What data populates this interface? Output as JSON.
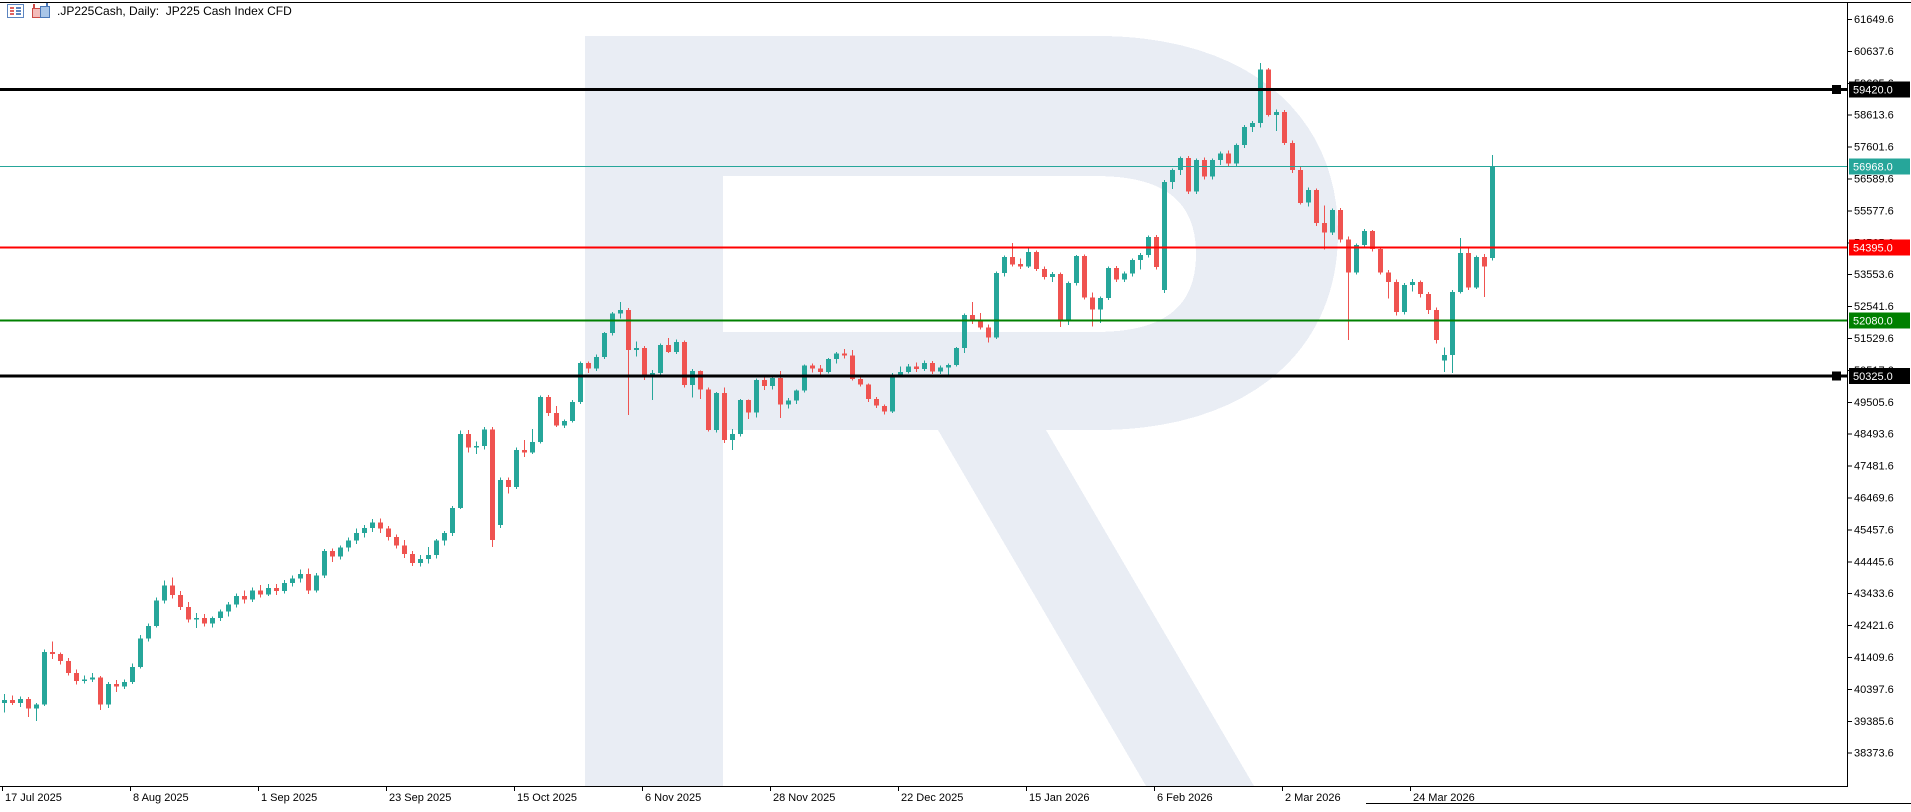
{
  "chart": {
    "title": ".JP225Cash, Daily:  JP225 Cash Index CFD"
  },
  "title_bar": {
    "icons": [
      "indicator-list-icon",
      "chart-symbol-icon"
    ]
  },
  "colors": {
    "bull": "#26a69a",
    "bear": "#ef5350",
    "watermark": "#e9edf4",
    "frame": "#000000",
    "axis_text": "#000000",
    "badge_text": "#ffffff",
    "level_black": "#000000",
    "level_red": "#ff0000",
    "level_green": "#008000",
    "current_price_color": "#26a69a"
  },
  "chart_data": {
    "type": "candlestick",
    "symbol": ".JP225Cash",
    "timeframe": "Daily",
    "description": "JP225 Cash Index CFD",
    "current_price": 56968.0,
    "legend_position": "top-left",
    "grid": false,
    "price_axis_ticks": [
      61649.6,
      60637.6,
      59625.6,
      58613.6,
      57601.6,
      56589.6,
      55577.6,
      54565.6,
      53553.6,
      52541.6,
      51529.6,
      50517.6,
      49505.6,
      48493.6,
      47481.6,
      46469.6,
      45457.6,
      44445.6,
      43433.6,
      42421.6,
      41409.6,
      40397.6,
      39385.6,
      38373.6
    ],
    "time_axis_labels": [
      "17 Jul 2025",
      "8 Aug 2025",
      "1 Sep 2025",
      "23 Sep 2025",
      "15 Oct 2025",
      "6 Nov 2025",
      "28 Nov 2025",
      "22 Dec 2025",
      "15 Jan 2026",
      "6 Feb 2026",
      "2 Mar 2026",
      "24 Mar 2026"
    ],
    "levels": [
      {
        "price": 59420.0,
        "label": "59420.0",
        "color": "#000000",
        "thickness": 3,
        "marker": true
      },
      {
        "price": 56968.0,
        "label": "56968.0",
        "color": "#26a69a",
        "thickness": 1,
        "marker": false
      },
      {
        "price": 54395.0,
        "label": "54395.0",
        "color": "#ff0000",
        "thickness": 2,
        "marker": false
      },
      {
        "price": 52080.0,
        "label": "52080.0",
        "color": "#008000",
        "thickness": 2,
        "marker": false
      },
      {
        "price": 50325.0,
        "label": "50325.0",
        "color": "#000000",
        "thickness": 3,
        "marker": true
      }
    ],
    "candles_ohlc": [
      [
        39950,
        40230,
        39650,
        40050
      ],
      [
        40050,
        40190,
        39890,
        39950
      ],
      [
        39950,
        40160,
        39830,
        40070
      ],
      [
        40070,
        40140,
        39500,
        39780
      ],
      [
        39780,
        39950,
        39380,
        39900
      ],
      [
        39900,
        41650,
        39850,
        41570
      ],
      [
        41570,
        41900,
        41350,
        41500
      ],
      [
        41500,
        41560,
        41180,
        41280
      ],
      [
        41280,
        41380,
        40820,
        40900
      ],
      [
        40900,
        41010,
        40540,
        40650
      ],
      [
        40650,
        40820,
        40570,
        40700
      ],
      [
        40700,
        40900,
        40620,
        40760
      ],
      [
        40760,
        40800,
        39730,
        39900
      ],
      [
        39900,
        40620,
        39790,
        40550
      ],
      [
        40550,
        40680,
        40300,
        40480
      ],
      [
        40480,
        40700,
        40390,
        40610
      ],
      [
        40610,
        41200,
        40560,
        41100
      ],
      [
        41100,
        42100,
        41050,
        42000
      ],
      [
        42000,
        42480,
        41900,
        42400
      ],
      [
        42400,
        43300,
        42350,
        43200
      ],
      [
        43200,
        43830,
        43100,
        43680
      ],
      [
        43680,
        43930,
        43260,
        43380
      ],
      [
        43380,
        43500,
        42900,
        43000
      ],
      [
        43000,
        43150,
        42500,
        42600
      ],
      [
        42600,
        42800,
        42330,
        42650
      ],
      [
        42650,
        42780,
        42380,
        42480
      ],
      [
        42480,
        42700,
        42350,
        42650
      ],
      [
        42650,
        42920,
        42550,
        42850
      ],
      [
        42850,
        43150,
        42700,
        43080
      ],
      [
        43080,
        43420,
        42980,
        43350
      ],
      [
        43350,
        43520,
        43100,
        43230
      ],
      [
        43230,
        43620,
        43150,
        43520
      ],
      [
        43520,
        43700,
        43300,
        43400
      ],
      [
        43400,
        43720,
        43350,
        43600
      ],
      [
        43600,
        43720,
        43380,
        43500
      ],
      [
        43500,
        43850,
        43420,
        43750
      ],
      [
        43750,
        44000,
        43650,
        43900
      ],
      [
        43900,
        44180,
        43780,
        44050
      ],
      [
        44050,
        44210,
        43400,
        43520
      ],
      [
        43520,
        44080,
        43450,
        44000
      ],
      [
        44000,
        44830,
        43920,
        44780
      ],
      [
        44780,
        44850,
        44430,
        44600
      ],
      [
        44600,
        44950,
        44500,
        44880
      ],
      [
        44880,
        45200,
        44760,
        45100
      ],
      [
        45100,
        45480,
        45000,
        45350
      ],
      [
        45350,
        45600,
        45200,
        45500
      ],
      [
        45500,
        45780,
        45380,
        45680
      ],
      [
        45680,
        45800,
        45350,
        45480
      ],
      [
        45480,
        45560,
        45100,
        45220
      ],
      [
        45220,
        45300,
        44850,
        44950
      ],
      [
        44950,
        45120,
        44550,
        44680
      ],
      [
        44680,
        44780,
        44290,
        44390
      ],
      [
        44390,
        44640,
        44280,
        44520
      ],
      [
        44520,
        44900,
        44380,
        44640
      ],
      [
        44640,
        45150,
        44540,
        45100
      ],
      [
        45100,
        45400,
        44950,
        45350
      ],
      [
        45350,
        46200,
        45250,
        46140
      ],
      [
        46140,
        48600,
        46100,
        48480
      ],
      [
        48480,
        48610,
        47900,
        48050
      ],
      [
        48050,
        48250,
        47850,
        48100
      ],
      [
        48100,
        48700,
        48000,
        48620
      ],
      [
        48620,
        48700,
        44900,
        45120
      ],
      [
        45600,
        47100,
        45500,
        47030
      ],
      [
        47030,
        47100,
        46600,
        46800
      ],
      [
        46800,
        48050,
        46740,
        47980
      ],
      [
        47980,
        48300,
        47750,
        47900
      ],
      [
        47900,
        48650,
        47850,
        48230
      ],
      [
        48230,
        49700,
        48180,
        49660
      ],
      [
        49660,
        49720,
        49050,
        49150
      ],
      [
        49150,
        49380,
        48700,
        48760
      ],
      [
        48760,
        48950,
        48680,
        48900
      ],
      [
        48900,
        49560,
        48850,
        49500
      ],
      [
        49500,
        50780,
        49440,
        50730
      ],
      [
        50730,
        50790,
        50420,
        50560
      ],
      [
        50560,
        51000,
        50480,
        50930
      ],
      [
        50930,
        51720,
        50870,
        51690
      ],
      [
        51690,
        52350,
        51600,
        52300
      ],
      [
        52300,
        52670,
        52150,
        52420
      ],
      [
        52420,
        52480,
        49090,
        51150
      ],
      [
        51150,
        51420,
        50950,
        51210
      ],
      [
        51210,
        51280,
        50200,
        50290
      ],
      [
        50290,
        50520,
        49560,
        50420
      ],
      [
        50420,
        51350,
        50350,
        51310
      ],
      [
        51310,
        51530,
        51050,
        51090
      ],
      [
        51090,
        51480,
        51020,
        51400
      ],
      [
        51400,
        51450,
        49960,
        50040
      ],
      [
        50040,
        50540,
        49650,
        50480
      ],
      [
        50480,
        50500,
        49600,
        49900
      ],
      [
        49900,
        49960,
        48560,
        48610
      ],
      [
        48610,
        49820,
        48530,
        49790
      ],
      [
        49790,
        49960,
        48200,
        48290
      ],
      [
        48290,
        48640,
        47970,
        48480
      ],
      [
        48480,
        49600,
        48400,
        49560
      ],
      [
        49560,
        49580,
        48960,
        49170
      ],
      [
        49170,
        50250,
        49000,
        50200
      ],
      [
        50200,
        50320,
        49880,
        50000
      ],
      [
        50000,
        50330,
        49900,
        50260
      ],
      [
        50260,
        50480,
        49000,
        49420
      ],
      [
        49420,
        49620,
        49300,
        49540
      ],
      [
        49540,
        49900,
        49430,
        49860
      ],
      [
        49860,
        50690,
        49800,
        50650
      ],
      [
        50650,
        50720,
        50440,
        50560
      ],
      [
        50560,
        50680,
        50380,
        50450
      ],
      [
        50450,
        50900,
        50400,
        50860
      ],
      [
        50860,
        51080,
        50720,
        51030
      ],
      [
        51030,
        51180,
        50880,
        50980
      ],
      [
        50980,
        51150,
        50180,
        50230
      ],
      [
        50230,
        50280,
        49990,
        50050
      ],
      [
        50050,
        50090,
        49500,
        49590
      ],
      [
        49590,
        49660,
        49310,
        49380
      ],
      [
        49380,
        49420,
        49100,
        49200
      ],
      [
        49200,
        50420,
        49150,
        50360
      ],
      [
        50360,
        50620,
        50300,
        50450
      ],
      [
        50450,
        50700,
        50400,
        50620
      ],
      [
        50620,
        50760,
        50450,
        50540
      ],
      [
        50540,
        50810,
        50480,
        50740
      ],
      [
        50740,
        50800,
        50390,
        50470
      ],
      [
        50470,
        50660,
        50380,
        50600
      ],
      [
        50600,
        50720,
        50280,
        50680
      ],
      [
        50680,
        51250,
        50620,
        51210
      ],
      [
        51210,
        52300,
        51050,
        52260
      ],
      [
        52260,
        52670,
        51980,
        52060
      ],
      [
        52060,
        52320,
        51800,
        51870
      ],
      [
        51870,
        51950,
        51380,
        51550
      ],
      [
        51550,
        53640,
        51500,
        53590
      ],
      [
        53590,
        54150,
        53480,
        54100
      ],
      [
        54100,
        54540,
        53800,
        53870
      ],
      [
        53870,
        54050,
        53720,
        53800
      ],
      [
        53800,
        54400,
        53750,
        54260
      ],
      [
        54260,
        54300,
        53650,
        53720
      ],
      [
        53720,
        53800,
        53380,
        53470
      ],
      [
        53470,
        53620,
        53300,
        53560
      ],
      [
        53560,
        53600,
        51880,
        52050
      ],
      [
        52050,
        53320,
        51950,
        53270
      ],
      [
        53270,
        54170,
        53200,
        54130
      ],
      [
        54130,
        54180,
        52750,
        52820
      ],
      [
        52820,
        52980,
        51900,
        52440
      ],
      [
        52440,
        52850,
        52000,
        52800
      ],
      [
        52800,
        53800,
        52740,
        53750
      ],
      [
        53750,
        53820,
        53310,
        53390
      ],
      [
        53390,
        53640,
        53300,
        53580
      ],
      [
        53580,
        54050,
        53480,
        54000
      ],
      [
        54000,
        54230,
        53700,
        54170
      ],
      [
        54170,
        54780,
        54080,
        54730
      ],
      [
        54730,
        54790,
        53700,
        53780
      ],
      [
        53050,
        56540,
        52960,
        56480
      ],
      [
        56480,
        56900,
        56250,
        56860
      ],
      [
        56860,
        57280,
        56700,
        57240
      ],
      [
        57240,
        57300,
        56100,
        56180
      ],
      [
        56180,
        57220,
        56100,
        57180
      ],
      [
        57180,
        57250,
        56560,
        56660
      ],
      [
        56660,
        57230,
        56560,
        57170
      ],
      [
        57170,
        57450,
        57020,
        57390
      ],
      [
        57390,
        57480,
        56980,
        57060
      ],
      [
        57060,
        57700,
        56980,
        57660
      ],
      [
        57660,
        58280,
        57560,
        58230
      ],
      [
        58230,
        58420,
        58060,
        58350
      ],
      [
        58350,
        60260,
        58200,
        60040
      ],
      [
        60040,
        60100,
        58550,
        58610
      ],
      [
        58610,
        58780,
        58100,
        58700
      ],
      [
        58700,
        58760,
        57650,
        57720
      ],
      [
        57720,
        57800,
        56760,
        56860
      ],
      [
        56860,
        56950,
        55760,
        55820
      ],
      [
        55820,
        56300,
        55700,
        56230
      ],
      [
        56230,
        56280,
        55080,
        55180
      ],
      [
        55180,
        55740,
        54330,
        54880
      ],
      [
        54880,
        55640,
        54800,
        55590
      ],
      [
        55590,
        55650,
        54560,
        54660
      ],
      [
        54660,
        54750,
        51470,
        53610
      ],
      [
        53610,
        54520,
        53550,
        54480
      ],
      [
        54480,
        54980,
        54380,
        54930
      ],
      [
        54930,
        54950,
        54280,
        54350
      ],
      [
        54350,
        54420,
        53540,
        53610
      ],
      [
        53610,
        53680,
        52790,
        53310
      ],
      [
        53310,
        53380,
        52250,
        52350
      ],
      [
        52350,
        53280,
        52270,
        53210
      ],
      [
        53210,
        53400,
        53000,
        53300
      ],
      [
        53300,
        53350,
        52820,
        52930
      ],
      [
        52930,
        52990,
        52300,
        52420
      ],
      [
        52420,
        52500,
        51350,
        51470
      ],
      [
        50820,
        51230,
        50450,
        50990
      ],
      [
        50990,
        53050,
        50420,
        52990
      ],
      [
        52990,
        54700,
        52950,
        54230
      ],
      [
        54230,
        54440,
        53060,
        53140
      ],
      [
        53140,
        54150,
        53080,
        54100
      ],
      [
        54100,
        54200,
        52830,
        53800
      ],
      [
        54070,
        57340,
        53980,
        56968
      ]
    ]
  }
}
